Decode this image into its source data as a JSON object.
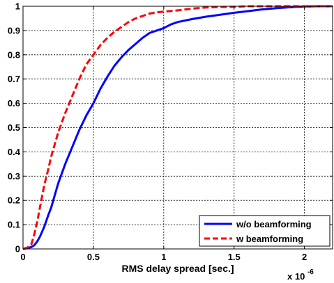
{
  "chart_data": {
    "type": "line",
    "title": "",
    "xlabel": "RMS delay spread [sec.]",
    "ylabel": "",
    "x_multiplier_label": "x 10",
    "x_multiplier_exp": "-6",
    "xlim": [
      0,
      2.2
    ],
    "ylim": [
      0,
      1
    ],
    "xticks": [
      0,
      0.5,
      1,
      1.5,
      2
    ],
    "xtick_labels": [
      "0",
      "0.5",
      "1",
      "1.5",
      "2"
    ],
    "yticks": [
      0,
      0.1,
      0.2,
      0.3,
      0.4,
      0.5,
      0.6,
      0.7,
      0.8,
      0.9,
      1
    ],
    "ytick_labels": [
      "0",
      "0.1",
      "0.2",
      "0.3",
      "0.4",
      "0.5",
      "0.6",
      "0.7",
      "0.8",
      "0.9",
      "1"
    ],
    "grid": true,
    "legend_position": "bottom-right",
    "series": [
      {
        "name": "w/o beamforming",
        "color": "#0000ff",
        "style": "solid",
        "x": [
          0,
          0.03,
          0.06,
          0.08,
          0.1,
          0.12,
          0.15,
          0.18,
          0.2,
          0.25,
          0.3,
          0.35,
          0.4,
          0.45,
          0.5,
          0.55,
          0.6,
          0.65,
          0.7,
          0.75,
          0.8,
          0.85,
          0.9,
          0.95,
          1.0,
          1.05,
          1.1,
          1.2,
          1.3,
          1.4,
          1.5,
          1.6,
          1.7,
          1.8,
          1.9,
          2.0,
          2.1,
          2.2
        ],
        "y": [
          0,
          0.003,
          0.008,
          0.015,
          0.03,
          0.05,
          0.09,
          0.14,
          0.17,
          0.27,
          0.35,
          0.42,
          0.49,
          0.55,
          0.6,
          0.66,
          0.71,
          0.755,
          0.79,
          0.82,
          0.845,
          0.87,
          0.89,
          0.9,
          0.91,
          0.925,
          0.935,
          0.947,
          0.957,
          0.965,
          0.973,
          0.98,
          0.987,
          0.992,
          0.996,
          0.999,
          1.0,
          1.0
        ]
      },
      {
        "name": "w beamforming",
        "color": "#ff0000",
        "style": "dashed",
        "x": [
          0,
          0.03,
          0.06,
          0.08,
          0.1,
          0.12,
          0.15,
          0.18,
          0.2,
          0.25,
          0.3,
          0.35,
          0.4,
          0.45,
          0.5,
          0.55,
          0.6,
          0.65,
          0.7,
          0.75,
          0.8,
          0.85,
          0.9,
          0.95,
          1.0,
          1.1,
          1.2,
          1.3,
          1.4,
          1.5,
          1.6,
          1.8,
          2.0,
          2.2
        ],
        "y": [
          0,
          0.005,
          0.02,
          0.06,
          0.11,
          0.17,
          0.26,
          0.33,
          0.38,
          0.48,
          0.56,
          0.63,
          0.7,
          0.76,
          0.8,
          0.84,
          0.87,
          0.895,
          0.915,
          0.935,
          0.95,
          0.96,
          0.97,
          0.975,
          0.978,
          0.983,
          0.99,
          0.995,
          0.997,
          0.998,
          1.0,
          1.0,
          1.0,
          1.0
        ]
      }
    ]
  }
}
